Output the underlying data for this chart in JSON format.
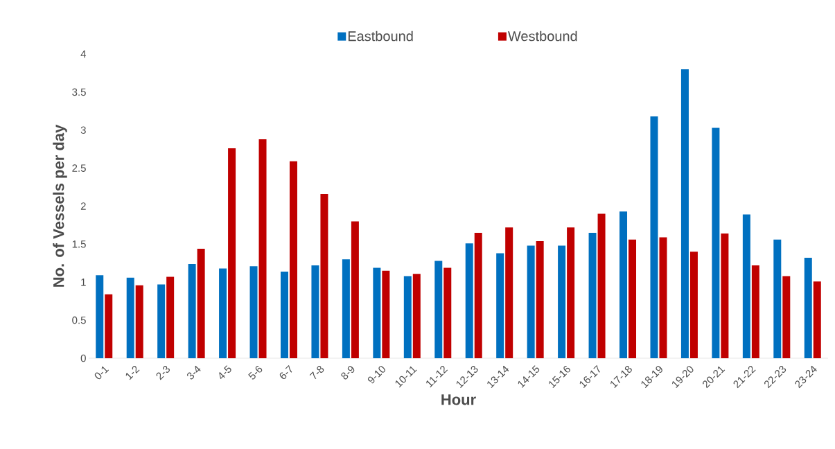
{
  "chart_data": {
    "type": "bar",
    "xlabel": "Hour",
    "ylabel": "No. of Vessels per day",
    "categories": [
      "0-1",
      "1-2",
      "2-3",
      "3-4",
      "4-5",
      "5-6",
      "6-7",
      "7-8",
      "8-9",
      "9-10",
      "10-11",
      "11-12",
      "12-13",
      "13-14",
      "14-15",
      "15-16",
      "16-17",
      "17-18",
      "18-19",
      "19-20",
      "20-21",
      "21-22",
      "22-23",
      "23-24"
    ],
    "series": [
      {
        "name": "Eastbound",
        "color": "#0070c0",
        "values": [
          1.09,
          1.06,
          0.97,
          1.24,
          1.18,
          1.21,
          1.14,
          1.22,
          1.3,
          1.19,
          1.08,
          1.28,
          1.51,
          1.38,
          1.48,
          1.48,
          1.65,
          1.93,
          3.18,
          3.8,
          3.03,
          1.89,
          1.56,
          1.32
        ]
      },
      {
        "name": "Westbound",
        "color": "#c00000",
        "values": [
          0.84,
          0.96,
          1.07,
          1.44,
          2.76,
          2.88,
          2.59,
          2.16,
          1.8,
          1.15,
          1.11,
          1.19,
          1.65,
          1.72,
          1.54,
          1.72,
          1.9,
          1.56,
          1.59,
          1.4,
          1.64,
          1.22,
          1.08,
          1.01
        ]
      }
    ],
    "ylim": [
      0,
      4
    ],
    "yticks": [
      0,
      0.5,
      1,
      1.5,
      2,
      2.5,
      3,
      3.5,
      4
    ],
    "legend": "top"
  }
}
